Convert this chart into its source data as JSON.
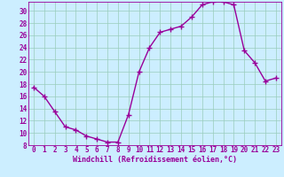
{
  "x": [
    0,
    1,
    2,
    3,
    4,
    5,
    6,
    7,
    8,
    9,
    10,
    11,
    12,
    13,
    14,
    15,
    16,
    17,
    18,
    19,
    20,
    21,
    22,
    23
  ],
  "y": [
    17.5,
    16,
    13.5,
    11,
    10.5,
    9.5,
    9,
    8.5,
    8.5,
    13,
    20,
    24,
    26.5,
    27,
    27.5,
    29,
    31,
    31.5,
    31.5,
    31,
    23.5,
    21.5,
    18.5,
    19
  ],
  "line_color": "#990099",
  "marker": "+",
  "background_color": "#cceeff",
  "grid_color": "#99ccbb",
  "xlabel": "Windchill (Refroidissement éolien,°C)",
  "xlabel_color": "#990099",
  "tick_color": "#990099",
  "ylim": [
    8,
    31.5
  ],
  "xlim": [
    -0.5,
    23.5
  ],
  "yticks": [
    8,
    10,
    12,
    14,
    16,
    18,
    20,
    22,
    24,
    26,
    28,
    30
  ],
  "xticks": [
    0,
    1,
    2,
    3,
    4,
    5,
    6,
    7,
    8,
    9,
    10,
    11,
    12,
    13,
    14,
    15,
    16,
    17,
    18,
    19,
    20,
    21,
    22,
    23
  ],
  "font_family": "monospace",
  "tick_fontsize": 5.5,
  "xlabel_fontsize": 6.0
}
